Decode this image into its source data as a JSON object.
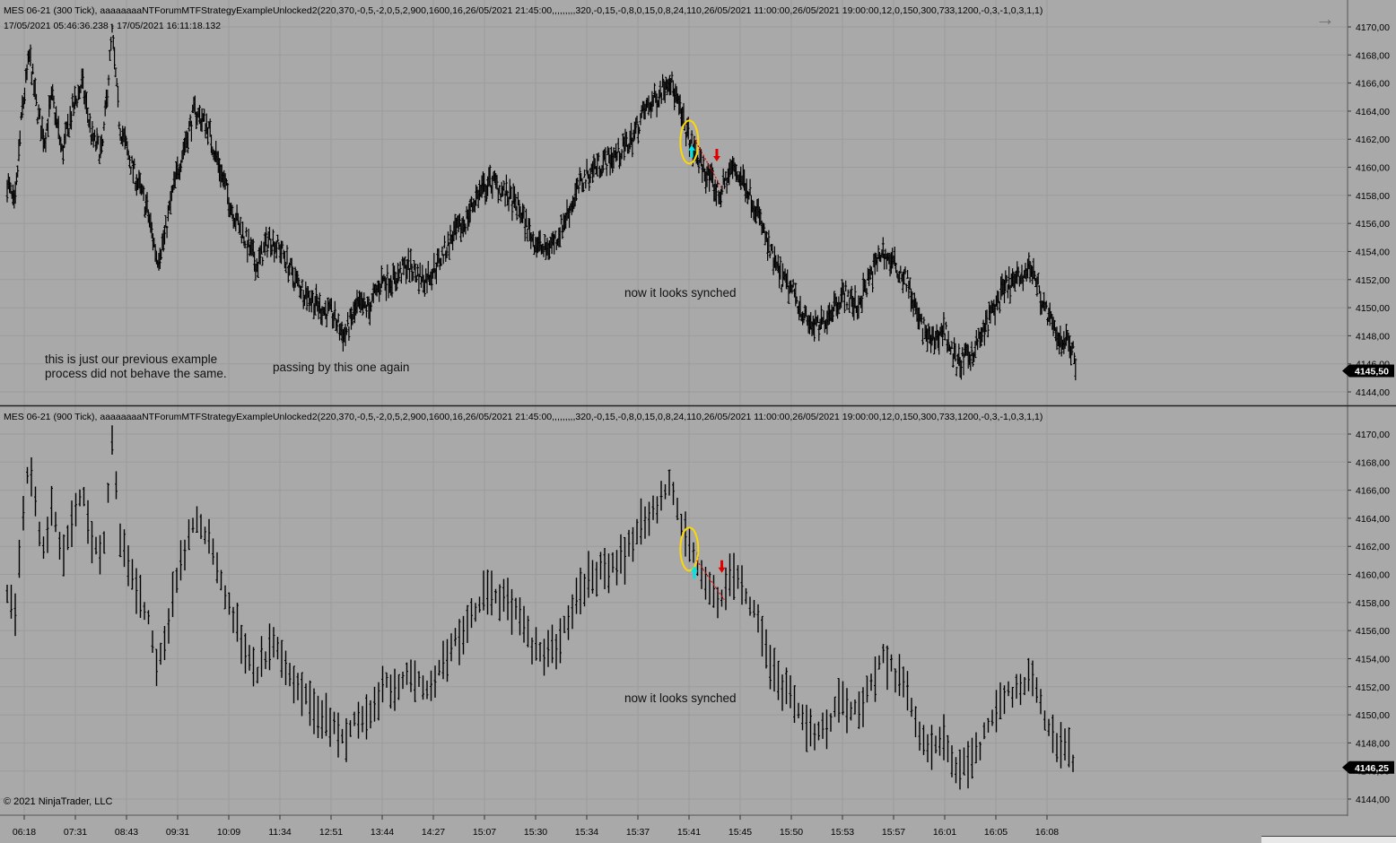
{
  "panes": [
    {
      "title": "MES 06-21 (300 Tick), aaaaaaaaNTForumMTFStrategyExampleUnlocked2(220,370,-0,5,-2,0,5,2,900,1600,16,26/05/2021 21:45:00,,,,,,,,,320,-0,15,-0,8,0,15,0,8,24,110,26/05/2021 11:00:00,26/05/2021 19:00:00,12,0,150,300,733,1200,-0,3,-1,0,3,1,1)",
      "subtitle": "17/05/2021 05:46:36.238 - 17/05/2021 16:11:18.132",
      "price_badge": "4145,50",
      "notes": {
        "previous_example": "this is just our previous example\nprocess did not behave the same.",
        "passing_by": "passing by this one again",
        "synched": "now it looks synched"
      }
    },
    {
      "title": "MES 06-21 (900 Tick), aaaaaaaaNTForumMTFStrategyExampleUnlocked2(220,370,-0,5,-2,0,5,2,900,1600,16,26/05/2021 21:45:00,,,,,,,,,320,-0,15,-0,8,0,15,0,8,24,110,26/05/2021 11:00:00,26/05/2021 19:00:00,12,0,150,300,733,1200,-0,3,-1,0,3,1,1)",
      "price_badge": "4146,25",
      "notes": {
        "synched": "now it looks synched"
      }
    }
  ],
  "copyright": "© 2021 NinjaTrader, LLC",
  "nav_arrow": "→",
  "colors": {
    "background": "#a9a9a9",
    "bars": "#000000",
    "grid": "#9c9c9c",
    "ellipse": "#ffd700",
    "buy_arrow": "#00e5e5",
    "sell_arrow": "#e00000",
    "trade_line": "#e00000",
    "badge": "#000000"
  },
  "chart_data": [
    {
      "type": "bar",
      "bar_style": "ohlc",
      "series_name": "MES 06-21 (300 Tick)",
      "ylim": [
        4143,
        4171
      ],
      "y_ticks": [
        "4144,00",
        "4146,00",
        "4148,00",
        "4150,00",
        "4152,00",
        "4154,00",
        "4156,00",
        "4158,00",
        "4160,00",
        "4162,00",
        "4164,00",
        "4166,00",
        "4168,00",
        "4170,00"
      ],
      "x_ticks": [
        "06:18",
        "07:31",
        "08:43",
        "09:31",
        "10:09",
        "11:34",
        "12:51",
        "13:44",
        "14:27",
        "15:07",
        "15:30",
        "15:34",
        "15:37",
        "15:41",
        "15:45",
        "15:50",
        "15:53",
        "15:57",
        "16:01",
        "16:05",
        "16:08"
      ],
      "close_path": [
        [
          0,
          4159
        ],
        [
          0.03,
          4157
        ],
        [
          0.06,
          4164
        ],
        [
          0.09,
          4168
        ],
        [
          0.12,
          4164
        ],
        [
          0.15,
          4162
        ],
        [
          0.18,
          4165
        ],
        [
          0.22,
          4161
        ],
        [
          0.26,
          4164
        ],
        [
          0.3,
          4166
        ],
        [
          0.34,
          4162
        ],
        [
          0.38,
          4161
        ],
        [
          0.42,
          4169.5
        ],
        [
          0.45,
          4163
        ],
        [
          0.5,
          4160
        ],
        [
          0.56,
          4157
        ],
        [
          0.6,
          4153.5
        ],
        [
          0.63,
          4155
        ],
        [
          0.66,
          4158
        ],
        [
          0.7,
          4161
        ],
        [
          0.75,
          4164
        ],
        [
          0.8,
          4163
        ],
        [
          0.85,
          4160
        ],
        [
          0.9,
          4157
        ],
        [
          0.95,
          4155
        ],
        [
          1,
          4153
        ],
        [
          1.05,
          4155
        ],
        [
          1.1,
          4154
        ],
        [
          1.15,
          4152
        ],
        [
          1.2,
          4151
        ],
        [
          1.25,
          4150
        ],
        [
          1.3,
          4149.5
        ],
        [
          1.35,
          4148
        ],
        [
          1.4,
          4150
        ],
        [
          1.45,
          4150
        ],
        [
          1.5,
          4152
        ],
        [
          1.55,
          4152
        ],
        [
          1.6,
          4153
        ],
        [
          1.67,
          4152
        ],
        [
          1.72,
          4153
        ],
        [
          1.78,
          4155
        ],
        [
          1.83,
          4156
        ],
        [
          1.88,
          4158
        ],
        [
          1.94,
          4159
        ],
        [
          2.0,
          4158
        ],
        [
          2.05,
          4157
        ],
        [
          2.1,
          4155
        ],
        [
          2.15,
          4154
        ],
        [
          2.2,
          4155
        ],
        [
          2.25,
          4157
        ],
        [
          2.3,
          4159
        ],
        [
          2.35,
          4160
        ],
        [
          2.4,
          4160.5
        ],
        [
          2.45,
          4161
        ],
        [
          2.5,
          4162
        ],
        [
          2.55,
          4164
        ],
        [
          2.6,
          4165
        ],
        [
          2.65,
          4166.5
        ],
        [
          2.7,
          4163.5
        ],
        [
          2.75,
          4161
        ],
        [
          2.8,
          4159.5
        ],
        [
          2.85,
          4158
        ],
        [
          2.9,
          4160
        ],
        [
          2.95,
          4159
        ],
        [
          3.0,
          4157
        ],
        [
          3.05,
          4154
        ],
        [
          3.1,
          4152
        ],
        [
          3.15,
          4151
        ],
        [
          3.2,
          4149
        ],
        [
          3.25,
          4148.5
        ],
        [
          3.3,
          4150
        ],
        [
          3.35,
          4151
        ],
        [
          3.4,
          4150
        ],
        [
          3.45,
          4152
        ],
        [
          3.5,
          4154
        ],
        [
          3.55,
          4153
        ],
        [
          3.6,
          4152
        ],
        [
          3.65,
          4149
        ],
        [
          3.7,
          4147.5
        ],
        [
          3.75,
          4148.5
        ],
        [
          3.8,
          4146
        ],
        [
          3.85,
          4146.5
        ],
        [
          3.9,
          4148
        ],
        [
          3.95,
          4150
        ],
        [
          4.0,
          4151.5
        ],
        [
          4.05,
          4152
        ],
        [
          4.1,
          4153
        ],
        [
          4.15,
          4150
        ],
        [
          4.2,
          4148
        ],
        [
          4.25,
          4147.5
        ],
        [
          4.28,
          4146
        ]
      ],
      "last_price": 4145.5,
      "markers": {
        "ellipse_center": [
          2.73,
          4161.8
        ],
        "buy_arrow": [
          2.74,
          4161.2
        ],
        "sell_arrow": [
          2.84,
          4160.8
        ],
        "trade_line": [
          [
            2.75,
            4162
          ],
          [
            2.86,
            4158.5
          ]
        ]
      }
    },
    {
      "type": "bar",
      "bar_style": "ohlc",
      "series_name": "MES 06-21 (900 Tick)",
      "ylim": [
        4143,
        4171
      ],
      "y_ticks": [
        "4144,00",
        "4146,00",
        "4148,00",
        "4150,00",
        "4152,00",
        "4154,00",
        "4156,00",
        "4158,00",
        "4160,00",
        "4162,00",
        "4164,00",
        "4166,00",
        "4168,00",
        "4170,00"
      ],
      "x_ticks": [
        "06:18",
        "07:31",
        "08:43",
        "09:31",
        "10:09",
        "11:34",
        "12:51",
        "13:44",
        "14:27",
        "15:07",
        "15:30",
        "15:34",
        "15:37",
        "15:41",
        "15:45",
        "15:50",
        "15:53",
        "15:57",
        "16:01",
        "16:05",
        "16:08"
      ],
      "close_path": [
        [
          0,
          4159
        ],
        [
          0.03,
          4157
        ],
        [
          0.06,
          4164
        ],
        [
          0.09,
          4168
        ],
        [
          0.12,
          4164
        ],
        [
          0.15,
          4162
        ],
        [
          0.18,
          4165
        ],
        [
          0.22,
          4161
        ],
        [
          0.26,
          4164
        ],
        [
          0.3,
          4166
        ],
        [
          0.34,
          4162
        ],
        [
          0.38,
          4161
        ],
        [
          0.42,
          4169.5
        ],
        [
          0.45,
          4163
        ],
        [
          0.5,
          4160
        ],
        [
          0.56,
          4157
        ],
        [
          0.6,
          4153.5
        ],
        [
          0.63,
          4155
        ],
        [
          0.66,
          4158
        ],
        [
          0.7,
          4161
        ],
        [
          0.75,
          4164
        ],
        [
          0.8,
          4163
        ],
        [
          0.85,
          4160
        ],
        [
          0.9,
          4157
        ],
        [
          0.95,
          4155
        ],
        [
          1,
          4153
        ],
        [
          1.05,
          4155
        ],
        [
          1.1,
          4154
        ],
        [
          1.15,
          4152
        ],
        [
          1.2,
          4151
        ],
        [
          1.25,
          4150
        ],
        [
          1.3,
          4149.5
        ],
        [
          1.35,
          4148
        ],
        [
          1.4,
          4150
        ],
        [
          1.45,
          4150
        ],
        [
          1.5,
          4152
        ],
        [
          1.55,
          4152
        ],
        [
          1.6,
          4153
        ],
        [
          1.67,
          4152
        ],
        [
          1.72,
          4153
        ],
        [
          1.78,
          4155
        ],
        [
          1.83,
          4156
        ],
        [
          1.88,
          4158
        ],
        [
          1.94,
          4159
        ],
        [
          2.0,
          4158
        ],
        [
          2.05,
          4157
        ],
        [
          2.1,
          4155
        ],
        [
          2.15,
          4154
        ],
        [
          2.2,
          4155
        ],
        [
          2.25,
          4157
        ],
        [
          2.3,
          4159
        ],
        [
          2.35,
          4160
        ],
        [
          2.4,
          4160.5
        ],
        [
          2.45,
          4161
        ],
        [
          2.5,
          4162
        ],
        [
          2.55,
          4164
        ],
        [
          2.6,
          4165
        ],
        [
          2.65,
          4166.5
        ],
        [
          2.7,
          4163.5
        ],
        [
          2.75,
          4161
        ],
        [
          2.8,
          4159.5
        ],
        [
          2.85,
          4158
        ],
        [
          2.9,
          4160
        ],
        [
          2.95,
          4159
        ],
        [
          3.0,
          4157
        ],
        [
          3.05,
          4154
        ],
        [
          3.1,
          4152
        ],
        [
          3.15,
          4151
        ],
        [
          3.2,
          4149
        ],
        [
          3.25,
          4148.5
        ],
        [
          3.3,
          4150
        ],
        [
          3.35,
          4151
        ],
        [
          3.4,
          4150
        ],
        [
          3.45,
          4152
        ],
        [
          3.5,
          4154
        ],
        [
          3.55,
          4153
        ],
        [
          3.6,
          4152
        ],
        [
          3.65,
          4149
        ],
        [
          3.7,
          4147.5
        ],
        [
          3.75,
          4148.5
        ],
        [
          3.8,
          4146
        ],
        [
          3.85,
          4146.5
        ],
        [
          3.9,
          4148
        ],
        [
          3.95,
          4150
        ],
        [
          4.0,
          4151.5
        ],
        [
          4.05,
          4152
        ],
        [
          4.1,
          4153
        ],
        [
          4.15,
          4150
        ],
        [
          4.2,
          4148
        ],
        [
          4.25,
          4147.5
        ],
        [
          4.28,
          4146.5
        ]
      ],
      "last_price": 4146.25,
      "markers": {
        "ellipse_center": [
          2.73,
          4161.8
        ],
        "buy_arrow": [
          2.75,
          4160.2
        ],
        "sell_arrow": [
          2.86,
          4160.5
        ],
        "trade_line": [
          [
            2.76,
            4161
          ],
          [
            2.87,
            4158.2
          ]
        ]
      }
    }
  ]
}
